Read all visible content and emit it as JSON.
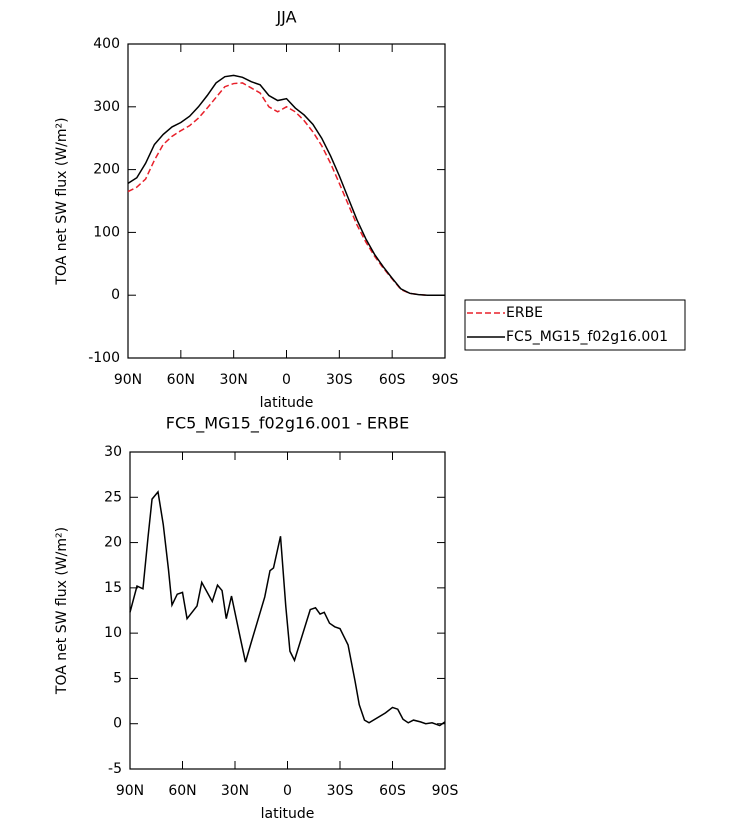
{
  "chart_data": [
    {
      "type": "line",
      "title": "JJA",
      "xlabel": "latitude",
      "ylabel": "TOA net SW flux (W/m²)",
      "x": [
        90,
        85,
        80,
        75,
        70,
        65,
        60,
        55,
        50,
        45,
        40,
        35,
        30,
        25,
        20,
        15,
        10,
        5,
        0,
        -5,
        -10,
        -15,
        -20,
        -25,
        -30,
        -35,
        -40,
        -45,
        -50,
        -55,
        -60,
        -65,
        -70,
        -75,
        -80,
        -85,
        -90
      ],
      "series": [
        {
          "name": "ERBE",
          "color": "#e8202a",
          "dash": true,
          "values": [
            165,
            172,
            185,
            215,
            240,
            253,
            262,
            270,
            282,
            298,
            315,
            332,
            337,
            338,
            330,
            322,
            300,
            292,
            300,
            292,
            278,
            260,
            238,
            210,
            178,
            145,
            112,
            85,
            62,
            43,
            26,
            9,
            3,
            1,
            0,
            0,
            0
          ]
        },
        {
          "name": "FC5_MG15_f02g16.001",
          "color": "#000000",
          "dash": false,
          "values": [
            178,
            187,
            210,
            240,
            256,
            268,
            275,
            285,
            300,
            318,
            338,
            348,
            350,
            347,
            340,
            335,
            318,
            310,
            313,
            298,
            287,
            272,
            250,
            222,
            190,
            155,
            120,
            90,
            65,
            45,
            27,
            10,
            3,
            1,
            0,
            0,
            0
          ]
        }
      ],
      "xlim": [
        90,
        -90
      ],
      "xticks": [
        {
          "value": 90,
          "label": "90N"
        },
        {
          "value": 60,
          "label": "60N"
        },
        {
          "value": 30,
          "label": "30N"
        },
        0,
        {
          "value": -30,
          "label": "30S"
        },
        {
          "value": -60,
          "label": "60S"
        },
        {
          "value": -90,
          "label": "90S"
        }
      ],
      "ylim": [
        -100,
        400
      ],
      "yticks": [
        -100,
        0,
        100,
        200,
        300,
        400
      ],
      "legend": "right"
    },
    {
      "type": "line",
      "title": "FC5_MG15_f02g16.001 - ERBE",
      "xlabel": "latitude",
      "ylabel": "TOA net SW flux (W/m²)",
      "x": [
        90,
        86,
        82.6,
        79.7,
        77.4,
        74,
        71,
        68,
        66,
        63,
        60,
        57.4,
        51.7,
        49,
        43,
        40,
        37.4,
        35,
        32,
        27,
        24,
        21,
        13,
        10,
        8,
        4,
        1,
        -1.4,
        -4,
        -13,
        -16,
        -18.6,
        -21,
        -24,
        -27,
        -30,
        -34.6,
        -38.6,
        -41,
        -44,
        -46.6,
        -56,
        -60,
        -63,
        -66,
        -69,
        -72,
        -76,
        -79,
        -82.6,
        -87,
        -90
      ],
      "series": [
        {
          "name": "FC5_MG15_f02g16.001 - ERBE",
          "color": "#000000",
          "dash": false,
          "values": [
            12.3,
            15.2,
            14.9,
            20.6,
            24.8,
            25.6,
            22,
            17,
            13.1,
            14.3,
            14.5,
            11.6,
            13,
            15.6,
            13.5,
            15.3,
            14.7,
            11.6,
            14.1,
            9.5,
            6.8,
            8.8,
            14,
            16.9,
            17.2,
            20.7,
            13,
            8,
            7,
            12.6,
            12.8,
            12.1,
            12.3,
            11.1,
            10.7,
            10.5,
            8.7,
            4.7,
            2.1,
            0.4,
            0.1,
            1.2,
            1.8,
            1.6,
            0.5,
            0.1,
            0.4,
            0.2,
            0,
            0.1,
            -0.2,
            0.2
          ]
        }
      ],
      "xlim": [
        90,
        -90
      ],
      "xticks": [
        {
          "value": 90,
          "label": "90N"
        },
        {
          "value": 60,
          "label": "60N"
        },
        {
          "value": 30,
          "label": "30N"
        },
        0,
        {
          "value": -30,
          "label": "30S"
        },
        {
          "value": -60,
          "label": "60S"
        },
        {
          "value": -90,
          "label": "90S"
        }
      ],
      "ylim": [
        -5,
        30
      ],
      "yticks": [
        -5,
        0,
        5,
        10,
        15,
        20,
        25,
        30
      ]
    }
  ]
}
